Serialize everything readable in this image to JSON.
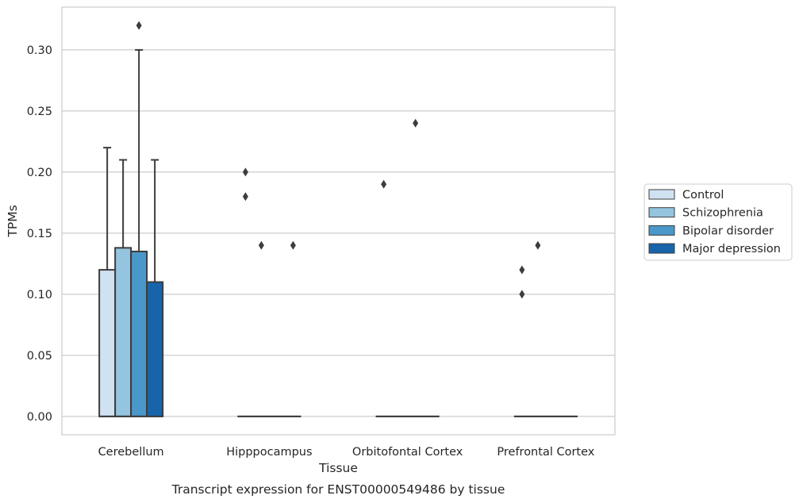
{
  "chart_data": {
    "type": "box",
    "title": "",
    "caption": "Transcript expression for ENST00000549486 by tissue",
    "xlabel": "Tissue",
    "ylabel": "TPMs",
    "ylim": [
      -0.015,
      0.335
    ],
    "yticks": [
      "0.00",
      "0.05",
      "0.10",
      "0.15",
      "0.20",
      "0.25",
      "0.30"
    ],
    "grid": "horizontal",
    "legend_position": "right",
    "categories": [
      "Cerebellum",
      "Hipppocampus",
      "Orbitofontal Cortex",
      "Prefrontal Cortex"
    ],
    "series": [
      {
        "name": "Control",
        "color": "#d0e1f2",
        "boxes": [
          {
            "q1": 0,
            "median": 0,
            "q3": 0.12,
            "whisker_low": 0,
            "whisker_high": 0.22,
            "outliers": []
          },
          {
            "q1": 0,
            "median": 0,
            "q3": 0,
            "whisker_low": 0,
            "whisker_high": 0,
            "outliers": [
              0.2,
              0.18
            ]
          },
          {
            "q1": 0,
            "median": 0,
            "q3": 0,
            "whisker_low": 0,
            "whisker_high": 0,
            "outliers": [
              0.19
            ]
          },
          {
            "q1": 0,
            "median": 0,
            "q3": 0,
            "whisker_low": 0,
            "whisker_high": 0,
            "outliers": [
              0.12,
              0.1
            ]
          }
        ]
      },
      {
        "name": "Schizophrenia",
        "color": "#94c4df",
        "boxes": [
          {
            "q1": 0,
            "median": 0,
            "q3": 0.138,
            "whisker_low": 0,
            "whisker_high": 0.21,
            "outliers": []
          },
          {
            "q1": 0,
            "median": 0,
            "q3": 0,
            "whisker_low": 0,
            "whisker_high": 0,
            "outliers": [
              0.14
            ]
          },
          {
            "q1": 0,
            "median": 0,
            "q3": 0,
            "whisker_low": 0,
            "whisker_high": 0,
            "outliers": []
          },
          {
            "q1": 0,
            "median": 0,
            "q3": 0,
            "whisker_low": 0,
            "whisker_high": 0,
            "outliers": [
              0.14
            ]
          }
        ]
      },
      {
        "name": "Bipolar disorder",
        "color": "#4a98c9",
        "boxes": [
          {
            "q1": 0,
            "median": 0,
            "q3": 0.135,
            "whisker_low": 0,
            "whisker_high": 0.3,
            "outliers": [
              0.32
            ]
          },
          {
            "q1": 0,
            "median": 0,
            "q3": 0,
            "whisker_low": 0,
            "whisker_high": 0,
            "outliers": []
          },
          {
            "q1": 0,
            "median": 0,
            "q3": 0,
            "whisker_low": 0,
            "whisker_high": 0,
            "outliers": [
              0.24
            ]
          },
          {
            "q1": 0,
            "median": 0,
            "q3": 0,
            "whisker_low": 0,
            "whisker_high": 0,
            "outliers": []
          }
        ]
      },
      {
        "name": "Major depression",
        "color": "#1764ab",
        "boxes": [
          {
            "q1": 0,
            "median": 0,
            "q3": 0.11,
            "whisker_low": 0,
            "whisker_high": 0.21,
            "outliers": []
          },
          {
            "q1": 0,
            "median": 0,
            "q3": 0,
            "whisker_low": 0,
            "whisker_high": 0,
            "outliers": [
              0.14
            ]
          },
          {
            "q1": 0,
            "median": 0,
            "q3": 0,
            "whisker_low": 0,
            "whisker_high": 0,
            "outliers": []
          },
          {
            "q1": 0,
            "median": 0,
            "q3": 0,
            "whisker_low": 0,
            "whisker_high": 0,
            "outliers": []
          }
        ]
      }
    ]
  }
}
